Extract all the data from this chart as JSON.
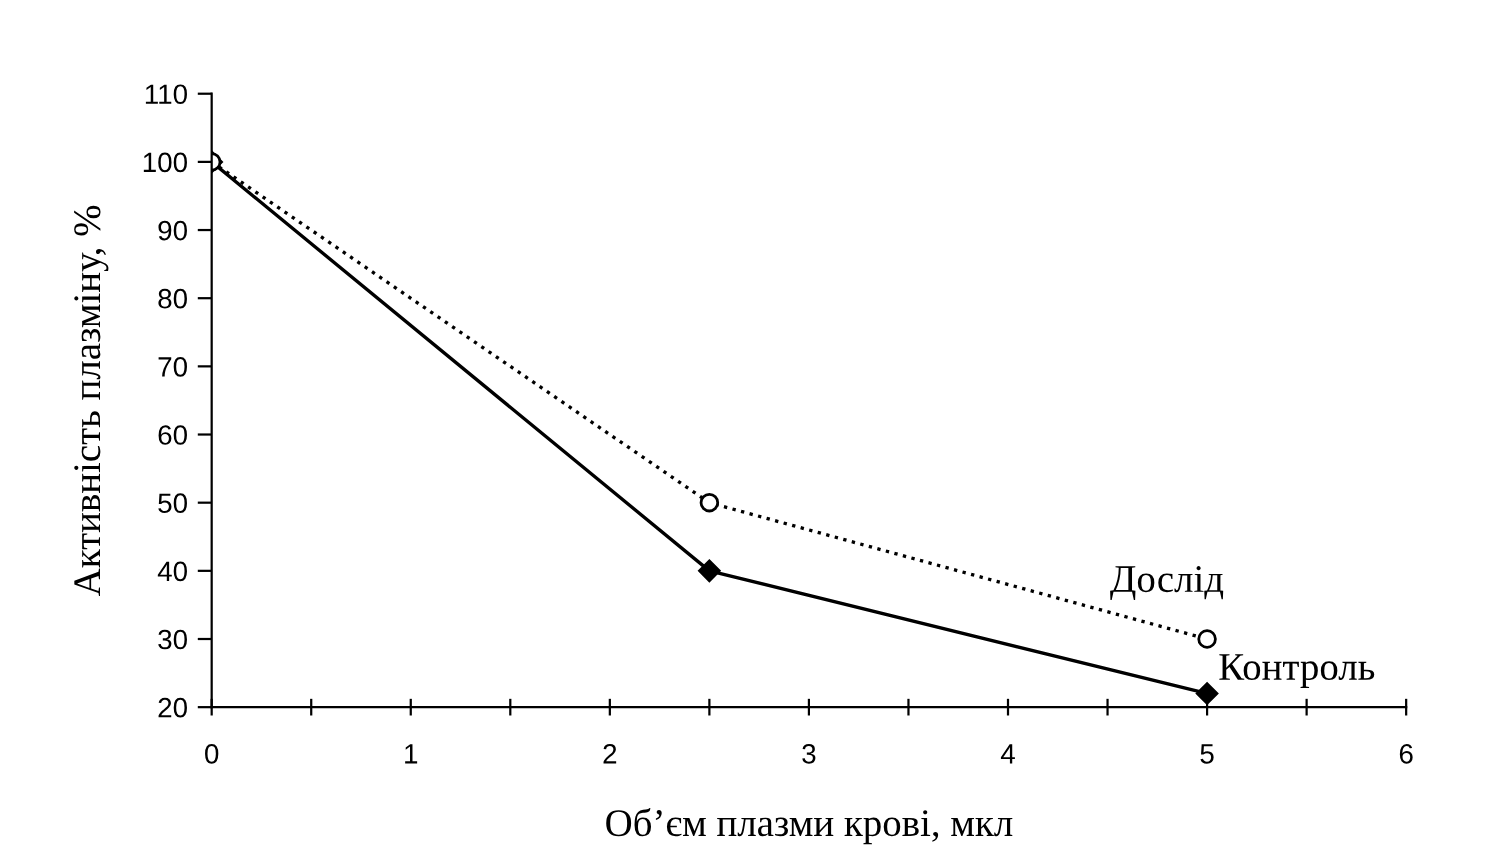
{
  "chart_data": {
    "type": "line",
    "xlabel": "Об’єм плазми крові, мкл",
    "ylabel": "Активність плазміну, %",
    "x": [
      0,
      2.5,
      5
    ],
    "series": [
      {
        "name": "Контроль",
        "color": "#000000",
        "values": [
          100,
          40,
          22
        ],
        "marker": "diamond",
        "line_style": "solid"
      },
      {
        "name": "Дослід",
        "color": "#000000",
        "values": [
          100,
          50,
          30
        ],
        "marker": "circle",
        "line_style": "dotted"
      }
    ],
    "xlim": [
      0,
      6
    ],
    "xticks": [
      0,
      {
        "value": 0.5,
        "label": null
      },
      1,
      {
        "value": 1.5,
        "label": null
      },
      2,
      {
        "value": 2.5,
        "label": null
      },
      3,
      {
        "value": 3.5,
        "label": null
      },
      4,
      {
        "value": 4.5,
        "label": null
      },
      5,
      {
        "value": 5.5,
        "label": null
      },
      6
    ],
    "ylim": [
      20,
      110
    ],
    "yticks": [
      20,
      30,
      40,
      50,
      60,
      70,
      80,
      90,
      100,
      110
    ],
    "grid": false,
    "legend": false
  }
}
